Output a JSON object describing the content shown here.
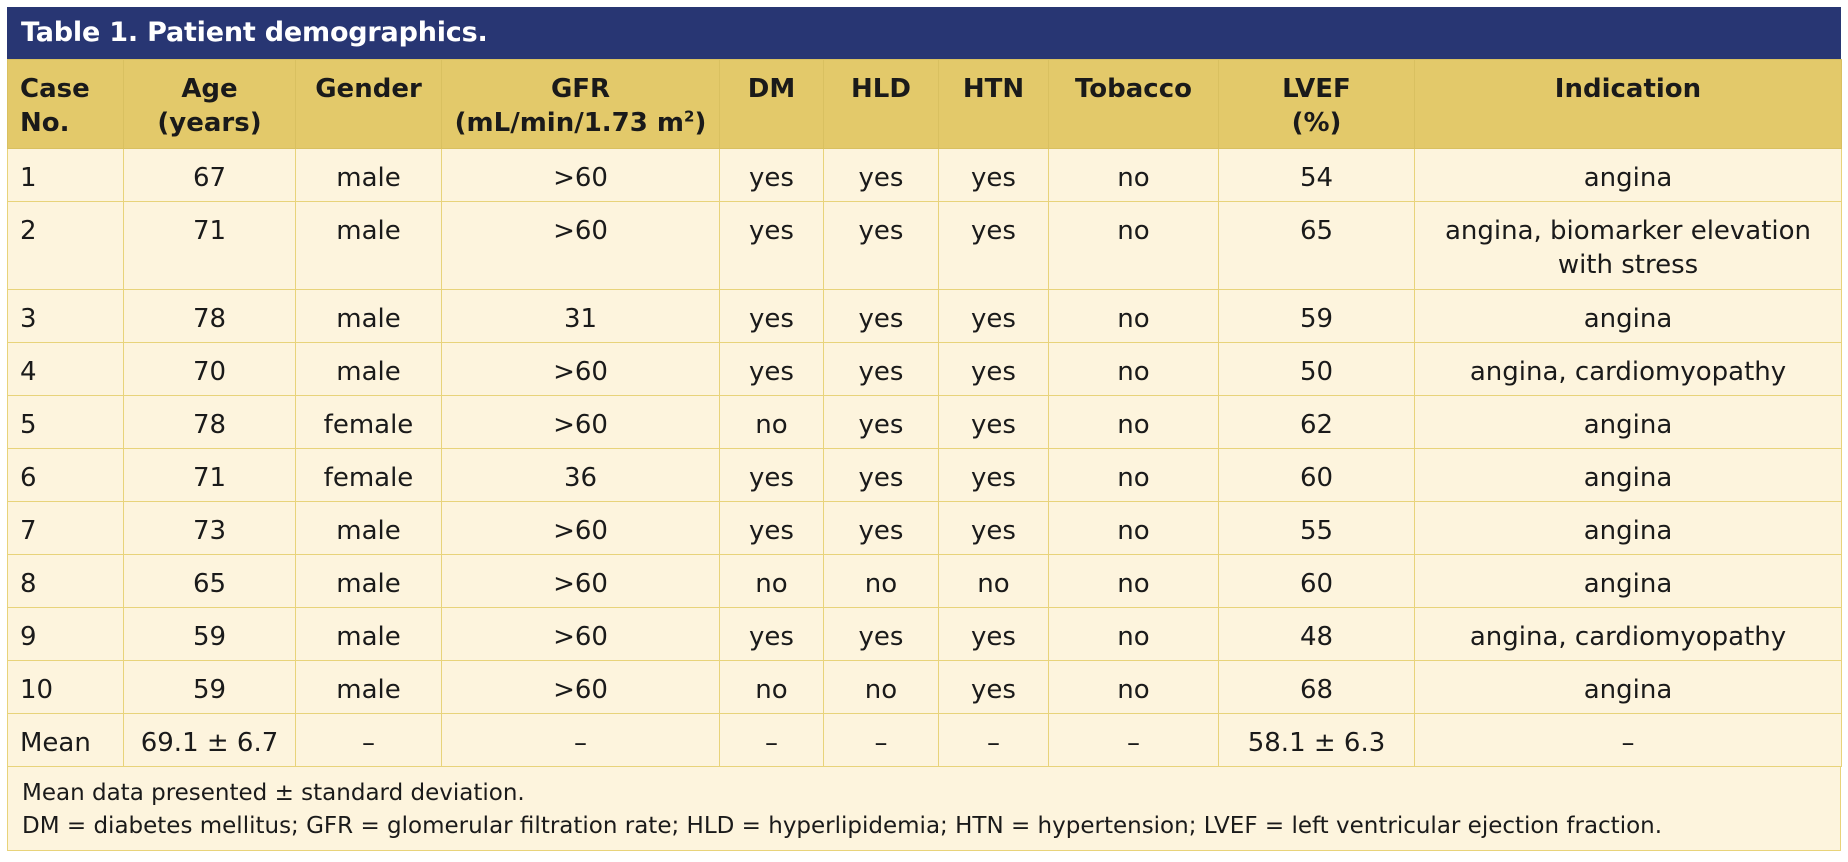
{
  "title": "Table 1. Patient demographics.",
  "columns": [
    {
      "line1": "Case",
      "line2": "No."
    },
    {
      "line1": "Age",
      "line2": "(years)"
    },
    {
      "line1": "Gender",
      "line2": ""
    },
    {
      "line1": "GFR",
      "line2": "(mL/min/1.73 m",
      "sup": "2",
      "tail": ")"
    },
    {
      "line1": "DM",
      "line2": ""
    },
    {
      "line1": "HLD",
      "line2": ""
    },
    {
      "line1": "HTN",
      "line2": ""
    },
    {
      "line1": "Tobacco",
      "line2": ""
    },
    {
      "line1": "LVEF",
      "line2": "(%)"
    },
    {
      "line1": "Indication",
      "line2": ""
    }
  ],
  "rows": [
    [
      "1",
      "67",
      "male",
      ">60",
      "yes",
      "yes",
      "yes",
      "no",
      "54",
      "angina"
    ],
    [
      "2",
      "71",
      "male",
      ">60",
      "yes",
      "yes",
      "yes",
      "no",
      "65",
      "angina, biomarker elevation with stress"
    ],
    [
      "3",
      "78",
      "male",
      "31",
      "yes",
      "yes",
      "yes",
      "no",
      "59",
      "angina"
    ],
    [
      "4",
      "70",
      "male",
      ">60",
      "yes",
      "yes",
      "yes",
      "no",
      "50",
      "angina, cardiomyopathy"
    ],
    [
      "5",
      "78",
      "female",
      ">60",
      "no",
      "yes",
      "yes",
      "no",
      "62",
      "angina"
    ],
    [
      "6",
      "71",
      "female",
      "36",
      "yes",
      "yes",
      "yes",
      "no",
      "60",
      "angina"
    ],
    [
      "7",
      "73",
      "male",
      ">60",
      "yes",
      "yes",
      "yes",
      "no",
      "55",
      "angina"
    ],
    [
      "8",
      "65",
      "male",
      ">60",
      "no",
      "no",
      "no",
      "no",
      "60",
      "angina"
    ],
    [
      "9",
      "59",
      "male",
      ">60",
      "yes",
      "yes",
      "yes",
      "no",
      "48",
      "angina, cardiomyopathy"
    ],
    [
      "10",
      "59",
      "male",
      ">60",
      "no",
      "no",
      "yes",
      "no",
      "68",
      "angina"
    ],
    [
      "Mean",
      "69.1 ± 6.7",
      "–",
      "–",
      "–",
      "–",
      "–",
      "–",
      "58.1 ± 6.3",
      "–"
    ]
  ],
  "footnotes": [
    "Mean data presented ± standard deviation.",
    "DM = diabetes mellitus; GFR = glomerular filtration rate; HLD = hyperlipidemia; HTN = hypertension; LVEF = left ventricular ejection fraction."
  ],
  "colors": {
    "title_bg": "#283673",
    "header_bg": "#e3c96a",
    "body_bg": "#fdf4dd",
    "border": "#e8d37a"
  }
}
